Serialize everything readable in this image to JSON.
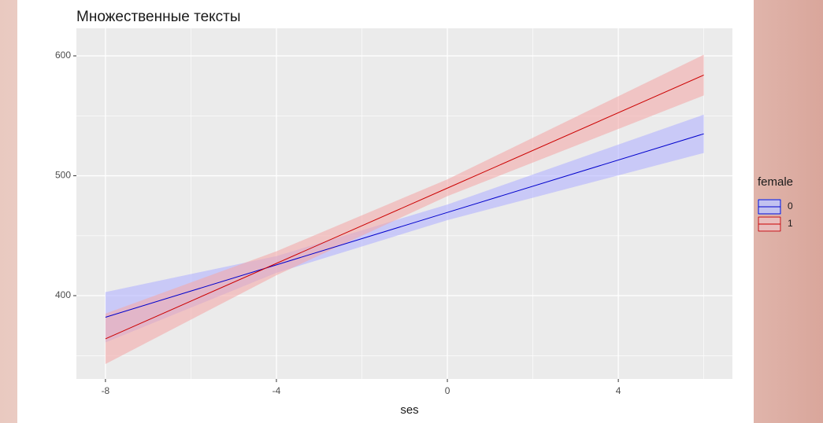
{
  "chart_data": {
    "type": "line",
    "title": "Множественные тексты",
    "x_label": "ses",
    "x": [
      -8,
      -4,
      0,
      6
    ],
    "series": [
      {
        "name": "0",
        "color": "#0000cc",
        "fill": "#b3b3ff",
        "values": [
          382,
          425.7,
          469.4,
          535
        ],
        "lower": [
          361,
          419,
          463,
          519
        ],
        "upper": [
          403,
          433,
          476,
          551
        ]
      },
      {
        "name": "1",
        "color": "#cc0000",
        "fill": "#f4aaaa",
        "values": [
          364,
          426.9,
          489.7,
          584
        ],
        "lower": [
          343,
          417,
          483,
          567
        ],
        "upper": [
          385,
          437,
          497,
          601
        ]
      }
    ],
    "legend_title": "female",
    "legend": "right",
    "xlim": [
      -8.68,
      6.67
    ],
    "ylim": [
      330.5,
      623
    ],
    "xticks": [
      -8,
      -4,
      0,
      4
    ],
    "yticks": [
      400,
      500,
      600
    ],
    "minor_xticks": [
      -6,
      -2,
      2,
      6
    ],
    "minor_yticks": [
      350,
      450,
      550
    ],
    "grid": true
  }
}
